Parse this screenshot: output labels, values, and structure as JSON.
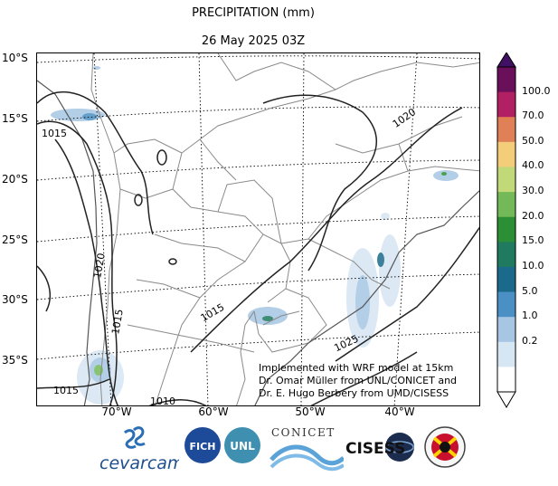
{
  "title": "PRECIPITATION (mm)",
  "subtitle": "26 May 2025 03Z",
  "lat_labels": [
    "10°S",
    "15°S",
    "20°S",
    "25°S",
    "30°S",
    "35°S"
  ],
  "lon_labels": [
    "70°W",
    "60°W",
    "50°W",
    "40°W"
  ],
  "isobar_labels": [
    "1015",
    "1020",
    "1015",
    "1020",
    "1015",
    "1025",
    "1015",
    "1010"
  ],
  "colorbar": {
    "ticks": [
      "100.0",
      "70.0",
      "50.0",
      "40.0",
      "30.0",
      "20.0",
      "15.0",
      "10.0",
      "5.0",
      "1.0",
      "0.2"
    ],
    "colors": [
      "#6a0f5a",
      "#b02063",
      "#e08056",
      "#f3cd7a",
      "#c2d979",
      "#74b957",
      "#2c8f35",
      "#1f7a5f",
      "#1b6a8b",
      "#4b90c4",
      "#a6c6e3",
      "#d6e6f3",
      "#ffffff"
    ]
  },
  "attribution": [
    "Implemented with WRF model at 15km",
    "Dr. Omar Müller from UNL/CONICET and",
    "Dr. E. Hugo Berbery from UMD/CISESS"
  ],
  "logos": {
    "cevarcam": "cevarcam",
    "fich": "FICH",
    "unl": "UNL",
    "conicet": "CONICET",
    "cisess": "CISESS"
  }
}
